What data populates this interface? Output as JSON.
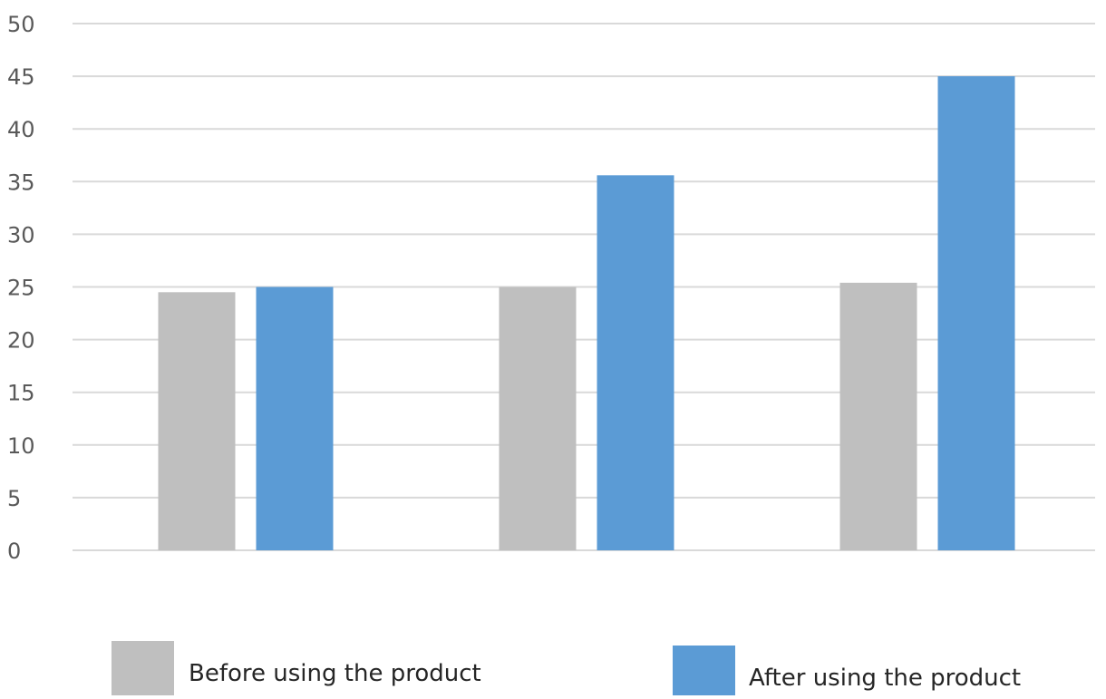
{
  "chart_data": {
    "type": "bar",
    "categories": [
      "",
      "",
      ""
    ],
    "series": [
      {
        "name": "Before using the product",
        "values": [
          24.5,
          25.0,
          25.4
        ],
        "color": "#BFBFBF"
      },
      {
        "name": "After using the product",
        "values": [
          25.0,
          35.6,
          45.0
        ],
        "color": "#5B9BD5"
      }
    ],
    "ylim": [
      0,
      50
    ],
    "y_ticks": [
      "0",
      "5",
      "10",
      "15",
      "20",
      "25",
      "30",
      "35",
      "40",
      "45",
      "50"
    ],
    "grid": true,
    "legend_position": "bottom",
    "title": "",
    "xlabel": "",
    "ylabel": ""
  }
}
